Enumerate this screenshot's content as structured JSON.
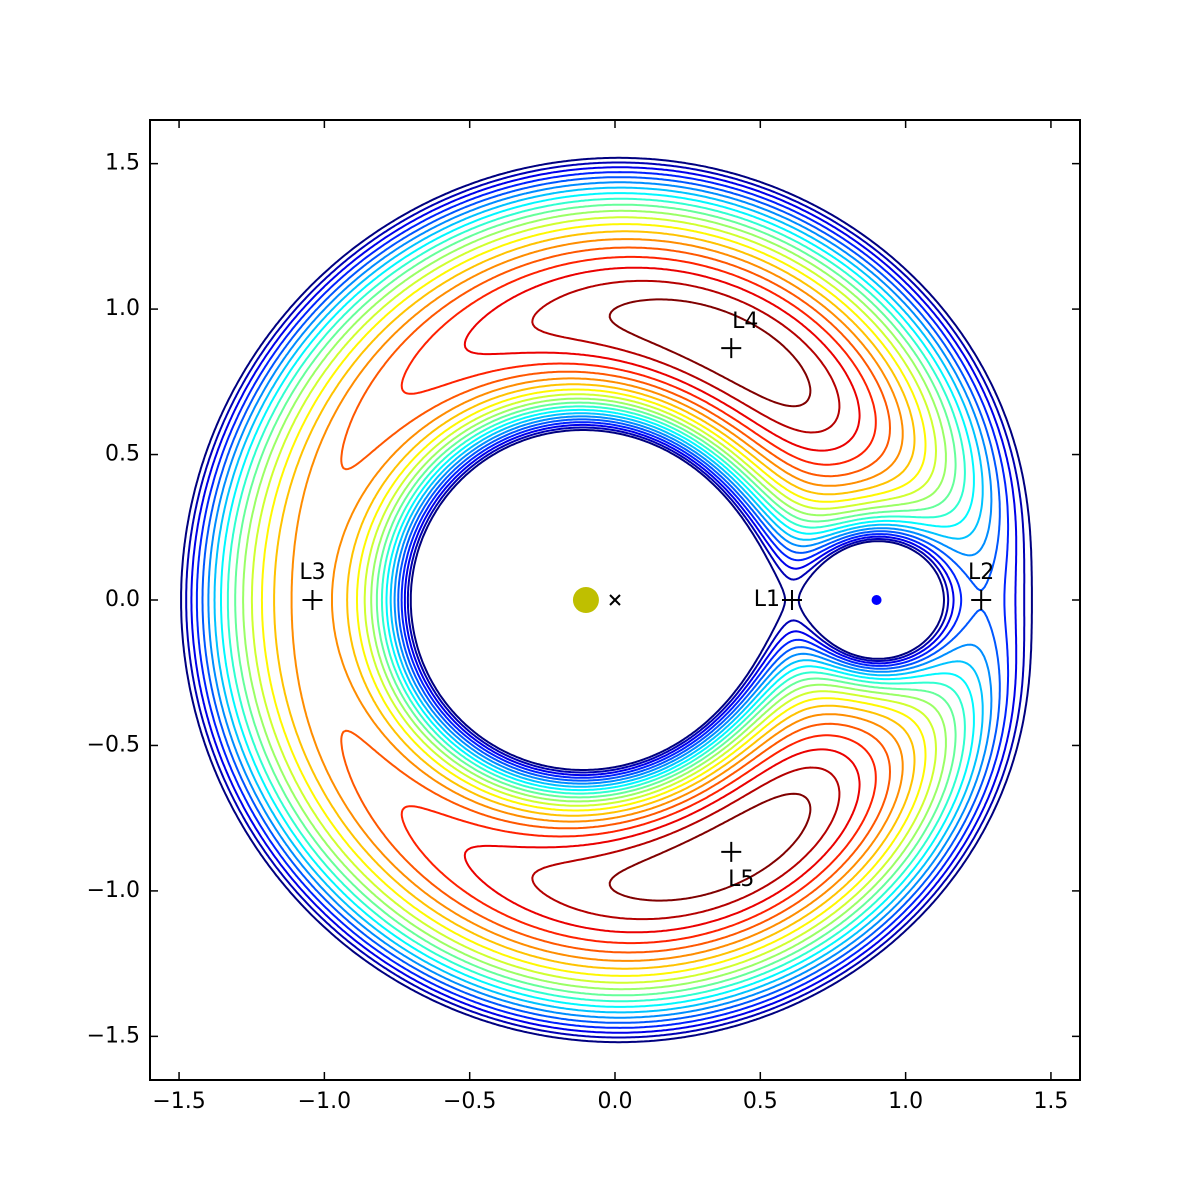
{
  "chart_data": {
    "type": "contour",
    "mu": 0.1,
    "levels": [
      1.47,
      1.4875,
      1.505,
      1.5225,
      1.54,
      1.5575,
      1.575,
      1.5925,
      1.61,
      1.6275,
      1.645,
      1.6625,
      1.68,
      1.6975,
      1.715,
      1.7325,
      1.75,
      1.7675,
      1.785,
      1.8025
    ],
    "colormap": "jet_r",
    "xlim": [
      -1.6,
      1.6
    ],
    "ylim": [
      -1.65,
      1.65
    ],
    "xticks": [
      {
        "value": -1.5,
        "label": "−1.5"
      },
      {
        "value": -1.0,
        "label": "−1.0"
      },
      {
        "value": -0.5,
        "label": "−0.5"
      },
      {
        "value": 0,
        "label": "0.0"
      },
      0.5,
      {
        "value": 1.0,
        "label": "1.0"
      },
      1.5
    ],
    "yticks": [
      {
        "value": -1.5,
        "label": "−1.5"
      },
      {
        "value": -1.0,
        "label": "−1.0"
      },
      {
        "value": -0.5,
        "label": "−0.5"
      },
      {
        "value": 0,
        "label": "0.0"
      },
      0.5,
      {
        "value": 1.0,
        "label": "1.0"
      },
      1.5
    ],
    "bodies": [
      {
        "x": -0.1,
        "y": 0,
        "color": "#bfbf00",
        "size": 13
      },
      {
        "x": 0.9,
        "y": 0,
        "color": "#0000ff",
        "size": 5
      }
    ],
    "barycenter": {
      "x": 0,
      "y": 0
    },
    "lagrange_points": [
      {
        "label": "L1",
        "x": 0.609,
        "y": 0
      },
      {
        "label": "L2",
        "x": 1.26,
        "y": 0
      },
      {
        "label": "L3",
        "x": -1.041,
        "y": 0
      },
      {
        "label": "L4",
        "x": 0.4,
        "y": 0.866
      },
      {
        "label": "L5",
        "x": 0.4,
        "y": -0.866
      }
    ]
  }
}
